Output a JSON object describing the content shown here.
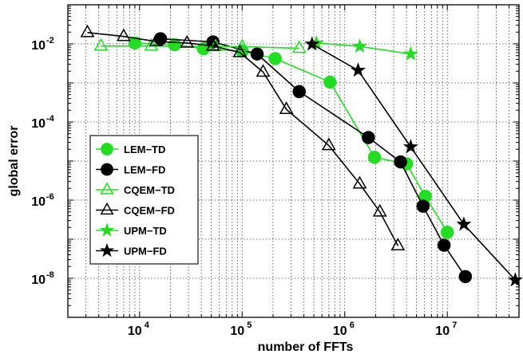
{
  "chart_data": {
    "type": "line",
    "xlabel": "number of FFTs",
    "ylabel": "global error",
    "xscale": "log",
    "yscale": "log",
    "xlim": [
      2000,
      50000000
    ],
    "ylim": [
      1e-09,
      0.1
    ],
    "x_ticks": [
      {
        "value": 10000,
        "base": "10",
        "exp": "4"
      },
      {
        "value": 100000,
        "base": "10",
        "exp": "5"
      },
      {
        "value": 1000000,
        "base": "10",
        "exp": "6"
      },
      {
        "value": 10000000,
        "base": "10",
        "exp": "7"
      }
    ],
    "y_ticks": [
      {
        "value": 0.01,
        "base": "10",
        "exp": "-2"
      },
      {
        "value": 0.0001,
        "base": "10",
        "exp": "-4"
      },
      {
        "value": 1e-06,
        "base": "10",
        "exp": "-6"
      },
      {
        "value": 1e-08,
        "base": "10",
        "exp": "-8"
      }
    ],
    "grid": true,
    "legend_position": "lower-left",
    "series": [
      {
        "name": "LEM−TD",
        "color": "#22dd22",
        "marker": "circle",
        "filled": true,
        "points": [
          [
            9000,
            0.0105
          ],
          [
            22000,
            0.0095
          ],
          [
            42000,
            0.0075
          ],
          [
            100000,
            0.0065
          ],
          [
            210000,
            0.0042
          ],
          [
            720000,
            0.00105
          ],
          [
            1950000,
            1.25e-05
          ],
          [
            4000000,
            8.5e-06
          ],
          [
            6100000,
            1.25e-06
          ],
          [
            10000000,
            1.5e-07
          ]
        ]
      },
      {
        "name": "LEM−FD",
        "color": "#000000",
        "marker": "circle",
        "filled": true,
        "points": [
          [
            16000,
            0.0135
          ],
          [
            52000,
            0.0112
          ],
          [
            140000,
            0.0055
          ],
          [
            360000,
            0.0006
          ],
          [
            1700000,
            4e-05
          ],
          [
            3500000,
            9.5e-06
          ],
          [
            5800000,
            7e-07
          ],
          [
            9300000,
            7e-08
          ],
          [
            15000000,
            1.1e-08
          ]
        ]
      },
      {
        "name": "CQEM−TD",
        "color": "#22dd22",
        "marker": "triangle",
        "filled": false,
        "points": [
          [
            4200,
            0.0088
          ],
          [
            13000,
            0.0088
          ],
          [
            55000,
            0.0085
          ],
          [
            100000,
            0.0085
          ],
          [
            360000,
            0.0077
          ]
        ]
      },
      {
        "name": "CQEM−FD",
        "color": "#000000",
        "marker": "triangle",
        "filled": false,
        "points": [
          [
            3100,
            0.0195
          ],
          [
            7000,
            0.0155
          ],
          [
            14500,
            0.0115
          ],
          [
            29000,
            0.0105
          ],
          [
            52000,
            0.0088
          ],
          [
            95000,
            0.006
          ],
          [
            160000,
            0.0019
          ],
          [
            270000,
            0.00021
          ],
          [
            700000,
            2.5e-05
          ],
          [
            1400000,
            2.6e-06
          ],
          [
            2200000,
            5e-07
          ],
          [
            3300000,
            6.8e-08
          ]
        ]
      },
      {
        "name": "UPM−TD",
        "color": "#22dd22",
        "marker": "star",
        "filled": true,
        "points": [
          [
            530000,
            0.0105
          ],
          [
            1400000,
            0.0086
          ],
          [
            4400000,
            0.0055
          ]
        ]
      },
      {
        "name": "UPM−FD",
        "color": "#000000",
        "marker": "star",
        "filled": true,
        "points": [
          [
            480000,
            0.0098
          ],
          [
            1350000,
            0.0021
          ],
          [
            4400000,
            2.3e-05
          ],
          [
            14500000,
            2.4e-07
          ],
          [
            46000000,
            9e-09
          ]
        ]
      }
    ]
  }
}
